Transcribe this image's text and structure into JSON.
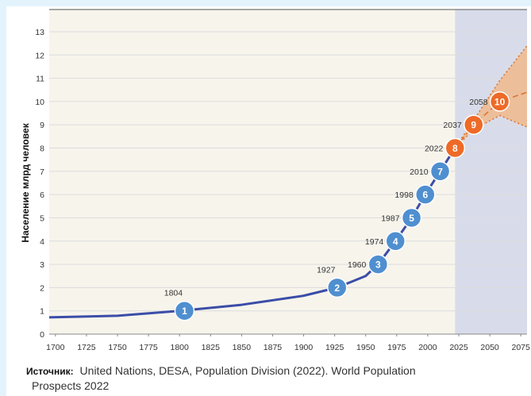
{
  "colors": {
    "past_bg": "#f7f4ec",
    "future_bg": "#d8dcea",
    "line": "#3b4da8",
    "past_marker": "#4f8fd0",
    "future_marker": "#ee6a27",
    "projection_fill": "#f1b98c",
    "projection_line": "#d9732d",
    "grid": "#dcdcdc"
  },
  "source": {
    "label": "Источник:",
    "line1": "United Nations, DESA, Population Division (2022). World Population",
    "line2": "Prospects 2022"
  },
  "chart_data": {
    "type": "line",
    "ylabel": "Население млрд человек",
    "xlabel": "",
    "xlim": [
      1695,
      2080
    ],
    "ylim": [
      0,
      13
    ],
    "x_ticks": [
      1700,
      1725,
      1750,
      1775,
      1800,
      1825,
      1850,
      1875,
      1900,
      1925,
      1950,
      1975,
      2000,
      2025,
      2050,
      2075
    ],
    "y_ticks": [
      0,
      1,
      2,
      3,
      4,
      5,
      6,
      7,
      8,
      9,
      10,
      11,
      12,
      13
    ],
    "grid": "horizontal",
    "projection_start": 2022,
    "series": [
      {
        "x": [
          1695,
          1750,
          1800,
          1850,
          1900,
          1927,
          1950,
          1960,
          1974,
          1987,
          1998,
          2010,
          2022
        ],
        "y": [
          0.72,
          0.79,
          1.0,
          1.26,
          1.65,
          2.0,
          2.5,
          3.0,
          4.0,
          5.0,
          6.0,
          7.0,
          8.0
        ]
      }
    ],
    "projection": {
      "x": [
        2022,
        2037,
        2058,
        2080
      ],
      "median": [
        8.0,
        9.0,
        10.0,
        10.4
      ],
      "upper": [
        8.0,
        9.2,
        10.9,
        12.4
      ],
      "lower": [
        8.0,
        8.8,
        9.4,
        8.9
      ]
    },
    "milestones": [
      {
        "label": "1",
        "year": "1804",
        "x": 1804,
        "y": 1,
        "phase": "past"
      },
      {
        "label": "2",
        "year": "1927",
        "x": 1927,
        "y": 2,
        "phase": "past"
      },
      {
        "label": "3",
        "year": "1960",
        "x": 1960,
        "y": 3,
        "phase": "past"
      },
      {
        "label": "4",
        "year": "1974",
        "x": 1974,
        "y": 4,
        "phase": "past"
      },
      {
        "label": "5",
        "year": "1987",
        "x": 1987,
        "y": 5,
        "phase": "past"
      },
      {
        "label": "6",
        "year": "1998",
        "x": 1998,
        "y": 6,
        "phase": "past"
      },
      {
        "label": "7",
        "year": "2010",
        "x": 2010,
        "y": 7,
        "phase": "past"
      },
      {
        "label": "8",
        "year": "2022",
        "x": 2022,
        "y": 8,
        "phase": "future"
      },
      {
        "label": "9",
        "year": "2037",
        "x": 2037,
        "y": 9,
        "phase": "future"
      },
      {
        "label": "10",
        "year": "2058",
        "x": 2058,
        "y": 10,
        "phase": "future"
      }
    ]
  }
}
